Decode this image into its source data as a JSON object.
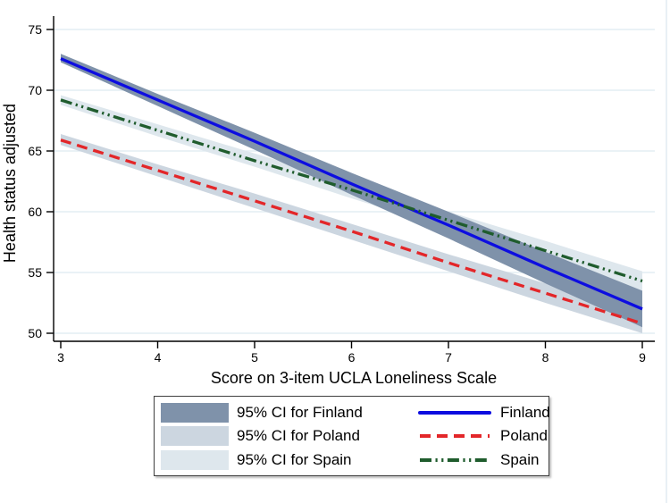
{
  "chart_data": {
    "type": "line",
    "title": "",
    "xlabel": "Score on 3-item UCLA Loneliness Scale",
    "ylabel": "Health status adjusted",
    "xlim": [
      3,
      9
    ],
    "ylim": [
      50,
      75
    ],
    "xticks": [
      3,
      4,
      5,
      6,
      7,
      8,
      9
    ],
    "yticks": [
      50,
      55,
      60,
      65,
      70,
      75
    ],
    "grid": "horizontal",
    "x": [
      3,
      4,
      5,
      6,
      7,
      8,
      9
    ],
    "series": [
      {
        "name": "Finland",
        "style": "solid",
        "color": "#0d0de0",
        "values": [
          72.6,
          69.2,
          65.8,
          62.3,
          58.9,
          55.4,
          52.0
        ],
        "ci_name": "95% CI for Finland",
        "ci_color": "#7f92aa",
        "ci_lower": [
          72.3,
          68.7,
          65.1,
          61.4,
          57.8,
          54.1,
          50.5
        ],
        "ci_upper": [
          73.0,
          69.7,
          66.5,
          63.2,
          60.0,
          56.7,
          53.5
        ]
      },
      {
        "name": "Poland",
        "style": "dash",
        "color": "#e32629",
        "values": [
          65.9,
          63.4,
          60.9,
          58.4,
          55.8,
          53.3,
          50.8
        ],
        "ci_name": "95% CI for Poland",
        "ci_color": "#ccd6e0",
        "ci_lower": [
          65.5,
          62.9,
          60.3,
          57.7,
          55.1,
          52.5,
          50.0
        ],
        "ci_upper": [
          66.4,
          63.9,
          61.5,
          59.0,
          56.5,
          54.1,
          51.6
        ]
      },
      {
        "name": "Spain",
        "style": "dash-dot-dot",
        "color": "#1f5c2d",
        "values": [
          69.2,
          66.7,
          64.2,
          61.8,
          59.3,
          56.8,
          54.3
        ],
        "ci_name": "95% CI for Spain",
        "ci_color": "#dee7ed",
        "ci_lower": [
          68.8,
          66.2,
          63.7,
          61.1,
          58.6,
          56.0,
          53.5
        ],
        "ci_upper": [
          69.6,
          67.2,
          64.8,
          62.4,
          60.0,
          57.6,
          55.1
        ]
      }
    ],
    "legend_position": "bottom-center"
  },
  "legend": {
    "rows": [
      {
        "ci_label": "95% CI for Finland",
        "series_label": "Finland"
      },
      {
        "ci_label": "95% CI for Poland",
        "series_label": "Poland"
      },
      {
        "ci_label": "95% CI for Spain",
        "series_label": "Spain"
      }
    ]
  },
  "colors": {
    "gridline": "#e4edf3",
    "axis": "#000000",
    "background": "#ffffff"
  }
}
